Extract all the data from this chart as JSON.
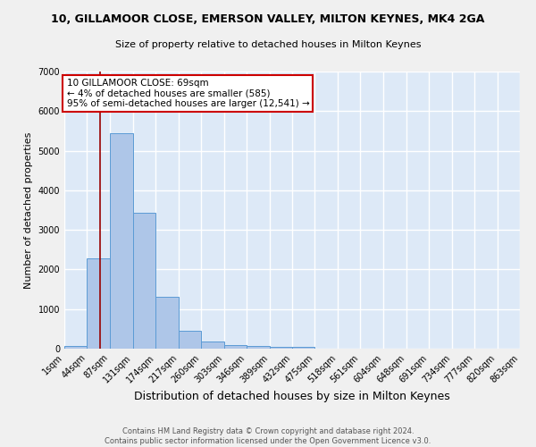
{
  "title": "10, GILLAMOOR CLOSE, EMERSON VALLEY, MILTON KEYNES, MK4 2GA",
  "subtitle": "Size of property relative to detached houses in Milton Keynes",
  "xlabel": "Distribution of detached houses by size in Milton Keynes",
  "ylabel": "Number of detached properties",
  "footer_line1": "Contains HM Land Registry data © Crown copyright and database right 2024.",
  "footer_line2": "Contains public sector information licensed under the Open Government Licence v3.0.",
  "annotation_line1": "10 GILLAMOOR CLOSE: 69sqm",
  "annotation_line2": "← 4% of detached houses are smaller (585)",
  "annotation_line3": "95% of semi-detached houses are larger (12,541) →",
  "bar_edges": [
    1,
    44,
    87,
    131,
    174,
    217,
    260,
    303,
    346,
    389,
    432,
    475,
    518,
    561,
    604,
    648,
    691,
    734,
    777,
    820,
    863
  ],
  "bar_heights": [
    75,
    2280,
    5450,
    3430,
    1320,
    450,
    170,
    95,
    65,
    55,
    55,
    0,
    0,
    0,
    0,
    0,
    0,
    0,
    0,
    0
  ],
  "bar_color": "#aec6e8",
  "bar_edge_color": "#5b9bd5",
  "bg_color": "#dde9f7",
  "grid_color": "#ffffff",
  "fig_bg_color": "#f0f0f0",
  "red_line_x": 69,
  "annotation_box_color": "#ffffff",
  "annotation_box_edge_color": "#cc0000",
  "ylim": [
    0,
    7000
  ],
  "yticks": [
    0,
    1000,
    2000,
    3000,
    4000,
    5000,
    6000,
    7000
  ],
  "title_fontsize": 9,
  "subtitle_fontsize": 8,
  "xlabel_fontsize": 9,
  "ylabel_fontsize": 8,
  "tick_fontsize": 7,
  "footer_fontsize": 6,
  "annotation_fontsize": 7.5
}
